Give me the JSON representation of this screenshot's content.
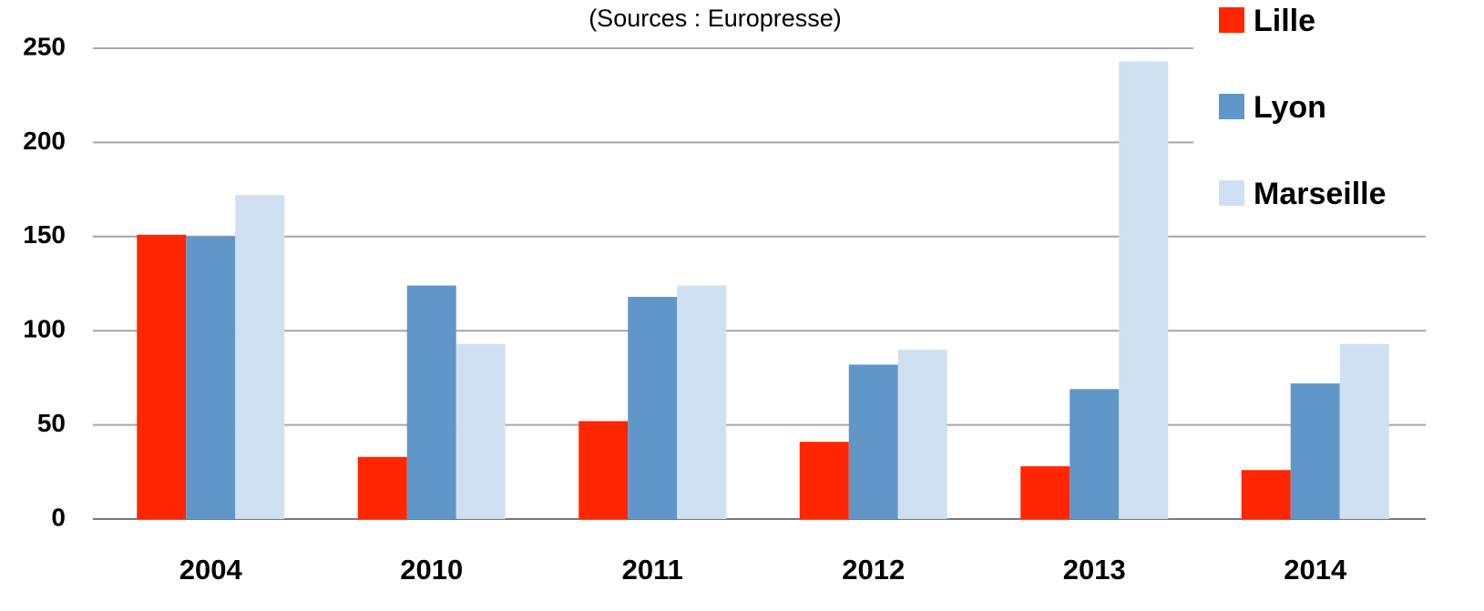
{
  "chart_data": {
    "type": "bar",
    "subtitle": "(Sources : Europresse)",
    "categories": [
      "2004",
      "2010",
      "2011",
      "2012",
      "2013",
      "2014"
    ],
    "series": [
      {
        "name": "Lille",
        "color": "#ff2600",
        "values": [
          151,
          33,
          52,
          41,
          28,
          26
        ]
      },
      {
        "name": "Lyon",
        "color": "#6196c9",
        "values": [
          150,
          124,
          118,
          82,
          69,
          72
        ]
      },
      {
        "name": "Marseille",
        "color": "#cfe0f2",
        "values": [
          172,
          93,
          124,
          90,
          243,
          93
        ]
      }
    ],
    "ylim": [
      0,
      250
    ],
    "yticks": [
      0,
      50,
      100,
      150,
      200,
      250
    ],
    "grid": true,
    "legend": "top-right"
  }
}
